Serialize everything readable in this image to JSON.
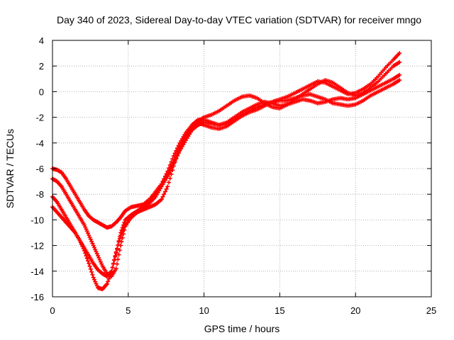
{
  "chart_data": {
    "type": "scatter",
    "title": "Day 340 of 2023, Sidereal Day-to-day VTEC variation (SDTVAR) for receiver mngo",
    "xlabel": "GPS time / hours",
    "ylabel": "SDTVAR / TECUs",
    "xlim": [
      0,
      25
    ],
    "ylim": [
      -16,
      4
    ],
    "x_ticks": [
      0,
      5,
      10,
      15,
      20,
      25
    ],
    "y_ticks": [
      -16,
      -14,
      -12,
      -10,
      -8,
      -6,
      -4,
      -2,
      0,
      2,
      4
    ],
    "grid": true,
    "marker": "+",
    "colors": {
      "series": "#ff0000",
      "grid": "#a0a0a0",
      "axis": "#000000"
    },
    "series": [
      {
        "x": [
          0.0,
          0.3,
          0.6,
          0.9,
          1.2,
          1.5,
          1.8,
          2.1,
          2.4,
          2.7,
          3.0,
          3.3,
          3.6,
          3.9,
          4.2,
          4.5,
          4.8,
          5.2,
          5.6,
          6.0,
          6.4,
          6.8,
          7.2,
          7.6,
          8.0,
          8.4,
          8.8,
          9.2,
          9.6,
          10.0,
          10.5,
          11.0,
          11.5,
          12.0,
          12.5,
          13.0,
          13.5,
          14.0,
          14.5,
          15.0,
          15.5,
          16.0,
          16.5,
          17.0,
          17.5,
          18.0,
          18.5,
          19.0,
          19.5,
          20.0,
          20.5,
          21.0,
          21.5,
          22.0,
          22.5,
          22.9
        ],
        "y": [
          -6.0,
          -6.1,
          -6.3,
          -6.8,
          -7.4,
          -8.0,
          -8.6,
          -9.2,
          -9.7,
          -10.0,
          -10.2,
          -10.4,
          -10.6,
          -10.5,
          -10.2,
          -9.8,
          -9.3,
          -9.0,
          -8.9,
          -8.8,
          -8.4,
          -7.8,
          -7.2,
          -6.5,
          -5.5,
          -4.5,
          -3.6,
          -3.0,
          -2.6,
          -2.4,
          -2.5,
          -2.6,
          -2.5,
          -2.2,
          -1.8,
          -1.5,
          -1.2,
          -1.0,
          -0.8,
          -0.6,
          -0.4,
          -0.1,
          0.2,
          0.5,
          0.8,
          0.7,
          0.4,
          0.1,
          -0.2,
          -0.1,
          0.2,
          0.6,
          1.2,
          1.9,
          2.5,
          3.0
        ]
      },
      {
        "x": [
          0.0,
          0.3,
          0.6,
          0.9,
          1.2,
          1.5,
          1.8,
          2.1,
          2.4,
          2.7,
          3.0,
          3.3,
          3.6,
          3.9,
          4.2,
          4.5,
          4.8,
          5.2,
          5.6,
          6.0,
          6.4,
          6.8,
          7.2,
          7.6,
          8.0,
          8.4,
          8.8,
          9.2,
          9.6,
          10.0,
          10.5,
          11.0,
          11.5,
          12.0,
          12.5,
          13.0,
          13.5,
          14.0,
          14.5,
          15.0,
          15.5,
          16.0,
          16.5,
          17.0,
          17.5,
          18.0,
          18.5,
          19.0,
          19.5,
          20.0,
          20.5,
          21.0,
          21.5,
          22.0,
          22.5,
          22.9
        ],
        "y": [
          -6.8,
          -7.0,
          -7.4,
          -8.0,
          -8.6,
          -9.2,
          -9.8,
          -10.4,
          -11.2,
          -12.0,
          -12.8,
          -13.6,
          -14.2,
          -14.4,
          -13.8,
          -12.0,
          -10.5,
          -9.8,
          -9.4,
          -9.0,
          -8.7,
          -8.2,
          -7.4,
          -6.6,
          -5.6,
          -4.6,
          -3.8,
          -3.0,
          -2.3,
          -2.0,
          -1.8,
          -1.5,
          -1.1,
          -0.7,
          -0.4,
          -0.3,
          -0.5,
          -0.9,
          -1.2,
          -1.3,
          -1.0,
          -0.6,
          -0.2,
          0.2,
          0.6,
          0.9,
          0.7,
          0.3,
          -0.1,
          -0.3,
          -0.1,
          0.3,
          0.8,
          1.4,
          2.0,
          2.3
        ]
      },
      {
        "x": [
          0.0,
          0.3,
          0.6,
          0.9,
          1.2,
          1.5,
          1.8,
          2.1,
          2.4,
          2.7,
          3.0,
          3.3,
          3.6,
          3.9,
          4.2,
          4.5,
          4.8,
          5.2,
          5.6,
          6.0,
          6.4,
          6.8,
          7.2,
          7.6,
          8.0,
          8.4,
          8.8,
          9.2,
          9.6,
          10.0,
          10.5,
          11.0,
          11.5,
          12.0,
          12.5,
          13.0,
          13.5,
          14.0,
          14.5,
          15.0,
          15.5,
          16.0,
          16.5,
          17.0,
          17.5,
          18.0,
          18.5,
          19.0,
          19.5,
          20.0,
          20.5,
          21.0,
          21.5,
          22.0,
          22.5,
          22.9
        ],
        "y": [
          -8.2,
          -8.6,
          -9.2,
          -9.8,
          -10.4,
          -11.0,
          -11.6,
          -12.2,
          -12.8,
          -13.4,
          -13.9,
          -14.2,
          -14.4,
          -14.0,
          -12.6,
          -11.0,
          -10.0,
          -9.6,
          -9.3,
          -9.0,
          -8.6,
          -8.0,
          -7.2,
          -6.2,
          -5.0,
          -4.0,
          -3.2,
          -2.6,
          -2.2,
          -2.2,
          -2.4,
          -2.6,
          -2.4,
          -2.0,
          -1.6,
          -1.3,
          -1.0,
          -0.8,
          -0.9,
          -1.1,
          -1.0,
          -0.8,
          -0.6,
          -0.7,
          -0.9,
          -0.8,
          -0.6,
          -0.5,
          -0.6,
          -0.5,
          -0.2,
          0.1,
          0.4,
          0.7,
          1.0,
          1.3
        ]
      },
      {
        "x": [
          0.0,
          0.3,
          0.6,
          0.9,
          1.2,
          1.5,
          1.8,
          2.1,
          2.4,
          2.7,
          3.0,
          3.3,
          3.6,
          3.9,
          4.2,
          4.5,
          4.8,
          5.2,
          5.6,
          6.0,
          6.4,
          6.8,
          7.2,
          7.6,
          8.0,
          8.4,
          8.8,
          9.2,
          9.6,
          10.0,
          10.5,
          11.0,
          11.5,
          12.0,
          12.5,
          13.0,
          13.5,
          14.0,
          14.5,
          15.0,
          15.5,
          16.0,
          16.5,
          17.0,
          17.5,
          18.0,
          18.5,
          19.0,
          19.5,
          20.0,
          20.5,
          21.0,
          21.5,
          22.0,
          22.5,
          22.9
        ],
        "y": [
          -9.0,
          -9.4,
          -9.8,
          -10.2,
          -10.6,
          -11.0,
          -11.6,
          -12.4,
          -13.4,
          -14.5,
          -15.3,
          -15.4,
          -15.0,
          -14.0,
          -12.5,
          -11.2,
          -10.4,
          -9.8,
          -9.4,
          -9.2,
          -9.0,
          -8.8,
          -8.4,
          -7.4,
          -5.8,
          -4.4,
          -3.4,
          -2.8,
          -2.4,
          -2.6,
          -2.8,
          -2.9,
          -2.7,
          -2.3,
          -1.9,
          -1.6,
          -1.4,
          -1.1,
          -0.8,
          -0.7,
          -0.7,
          -0.5,
          -0.3,
          -0.2,
          -0.4,
          -0.6,
          -0.9,
          -1.0,
          -1.1,
          -1.0,
          -0.7,
          -0.3,
          0.0,
          0.3,
          0.6,
          0.9
        ]
      }
    ]
  }
}
